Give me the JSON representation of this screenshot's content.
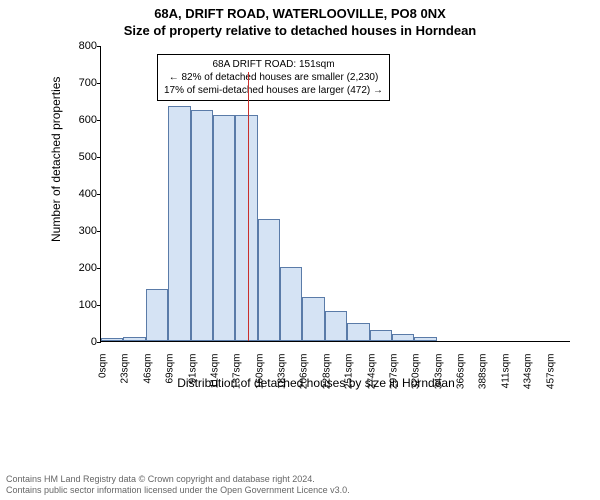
{
  "title_main": "68A, DRIFT ROAD, WATERLOOVILLE, PO8 0NX",
  "title_sub": "Size of property relative to detached houses in Horndean",
  "y_axis_label": "Number of detached properties",
  "x_axis_label": "Distribution of detached houses by size in Horndean",
  "chart": {
    "type": "histogram",
    "ylim": [
      0,
      800
    ],
    "ytick_step": 100,
    "bar_fill": "#d5e3f4",
    "bar_border": "#5a7ba8",
    "marker_color": "#c9302c",
    "background_color": "#ffffff",
    "bin_width_sqm": 23,
    "bar_rel_width": 1.0,
    "categories": [
      "0sqm",
      "23sqm",
      "46sqm",
      "69sqm",
      "91sqm",
      "114sqm",
      "137sqm",
      "160sqm",
      "183sqm",
      "206sqm",
      "228sqm",
      "251sqm",
      "274sqm",
      "297sqm",
      "320sqm",
      "343sqm",
      "366sqm",
      "388sqm",
      "411sqm",
      "434sqm",
      "457sqm"
    ],
    "values": [
      8,
      10,
      140,
      635,
      625,
      610,
      610,
      330,
      200,
      118,
      80,
      50,
      30,
      20,
      12,
      0,
      0,
      0,
      0,
      0,
      0
    ],
    "marker_value_sqm": 151,
    "marker_height_value": 728
  },
  "annot": {
    "line1": "68A DRIFT ROAD: 151sqm",
    "line2": "← 82% of detached houses are smaller (2,230)",
    "line3": "17% of semi-detached houses are larger (472) →"
  },
  "footer": {
    "line1": "Contains HM Land Registry data © Crown copyright and database right 2024.",
    "line2": "Contains public sector information licensed under the Open Government Licence v3.0."
  },
  "fonts": {
    "title_fontsize": 13,
    "axis_label_fontsize": 12,
    "tick_fontsize": 10,
    "annot_fontsize": 10,
    "footer_fontsize": 9
  }
}
